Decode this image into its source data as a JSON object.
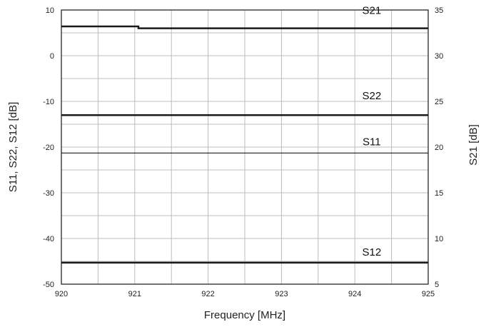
{
  "chart_data": {
    "type": "line",
    "xlabel": "Frequency [MHz]",
    "ylabel_left": "S11, S22, S12 [dB]",
    "ylabel_right": "S21 [dB]",
    "xlim": [
      920,
      925
    ],
    "ylim_left": [
      -50,
      10
    ],
    "ylim_right": [
      5,
      35
    ],
    "x_ticks": [
      "920",
      "921",
      "922",
      "923",
      "924",
      "925"
    ],
    "y_ticks_left": [
      "10",
      "0",
      "-10",
      "-20",
      "-30",
      "-40",
      "-50"
    ],
    "y_ticks_right": [
      "35",
      "30",
      "25",
      "20",
      "15",
      "10",
      "5"
    ],
    "grid": true,
    "series": [
      {
        "name": "S21",
        "axis": "right",
        "x": [
          920,
          921.05,
          921.05,
          925
        ],
        "y": [
          33.2,
          33.2,
          33.0,
          33.0
        ]
      },
      {
        "name": "S22",
        "axis": "left",
        "x": [
          920,
          925
        ],
        "y": [
          -13,
          -13
        ]
      },
      {
        "name": "S11",
        "axis": "left",
        "x": [
          920,
          925
        ],
        "y": [
          -21.3,
          -21.3
        ]
      },
      {
        "name": "S12",
        "axis": "left",
        "x": [
          920,
          925
        ],
        "y": [
          -45.3,
          -45.3
        ]
      }
    ]
  }
}
